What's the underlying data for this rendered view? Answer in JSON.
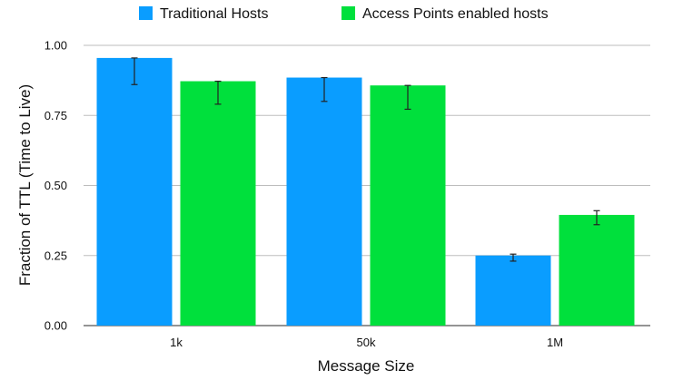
{
  "chart_data": {
    "type": "bar",
    "title": "",
    "xlabel": "Message Size",
    "ylabel": "Fraction of TTL (Time to Live)",
    "categories": [
      "1k",
      "50k",
      "1M"
    ],
    "ylim": [
      0,
      1.0
    ],
    "yticks": [
      0.0,
      0.25,
      0.5,
      0.75,
      1.0
    ],
    "ytick_labels": [
      "0.00",
      "0.25",
      "0.50",
      "0.75",
      "1.00"
    ],
    "grid": true,
    "legend_position": "top",
    "series": [
      {
        "name": "Traditional Hosts",
        "color": "#0a9dff",
        "values": [
          0.955,
          0.885,
          0.25
        ],
        "error_low": [
          0.86,
          0.8,
          0.23
        ],
        "error_high": [
          0.955,
          0.885,
          0.255
        ]
      },
      {
        "name": "Access Points enabled hosts",
        "color": "#00e03c",
        "values": [
          0.872,
          0.857,
          0.395
        ],
        "error_low": [
          0.79,
          0.772,
          0.36
        ],
        "error_high": [
          0.872,
          0.857,
          0.41
        ]
      }
    ]
  }
}
